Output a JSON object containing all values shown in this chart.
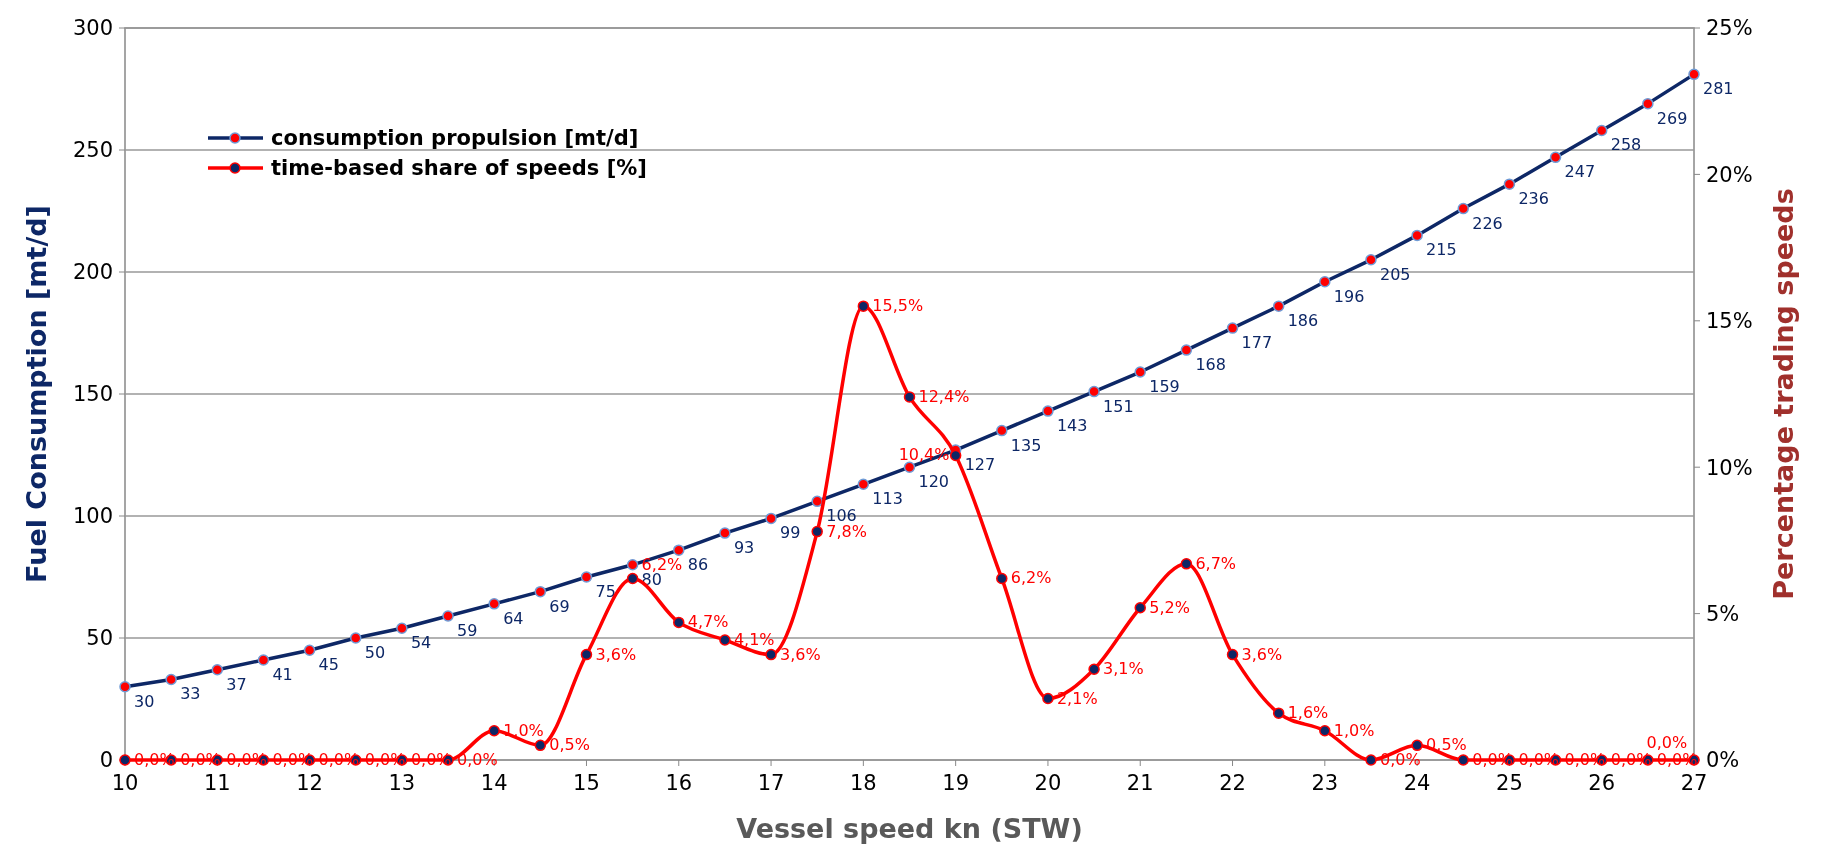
{
  "chart_data": {
    "type": "line",
    "xlabel": "Vessel speed kn (STW)",
    "ylabel": "Fuel Consumption [mt/d]",
    "y2label": "Percentage  trading speeds",
    "x": [
      10,
      10.5,
      11,
      11.5,
      12,
      12.5,
      13,
      13.5,
      14,
      14.5,
      15,
      15.5,
      16,
      16.5,
      17,
      17.5,
      18,
      18.5,
      19,
      19.5,
      20,
      20.5,
      21,
      21.5,
      22,
      22.5,
      23,
      23.5,
      24,
      24.5,
      25,
      25.5,
      26,
      26.5,
      27
    ],
    "series": [
      {
        "name": "consumption propulsion [mt/d]",
        "color": "#0d2766",
        "values": [
          30,
          33,
          37,
          41,
          45,
          50,
          54,
          59,
          64,
          69,
          75,
          80,
          86,
          93,
          99,
          106,
          113,
          120,
          127,
          135,
          143,
          151,
          159,
          168,
          177,
          186,
          196,
          205,
          215,
          226,
          236,
          247,
          258,
          269,
          281
        ],
        "value_labels": [
          "30",
          "33",
          "37",
          "41",
          "45",
          "50",
          "54",
          "59",
          "64",
          "69",
          "75",
          "80",
          "86",
          "93",
          "99",
          "106",
          "113",
          "120",
          "127",
          "135",
          "143",
          "151",
          "159",
          "168",
          "177",
          "186",
          "196",
          "205",
          "215",
          "226",
          "236",
          "247",
          "258",
          "269",
          "281"
        ]
      },
      {
        "name": "time-based share of speeds [%]",
        "color": "#ff0000",
        "axis": "y2",
        "values": [
          0,
          0,
          0,
          0,
          0,
          0,
          0,
          0,
          1.0,
          0.5,
          3.6,
          6.2,
          4.7,
          4.1,
          3.6,
          7.8,
          15.5,
          12.4,
          10.4,
          6.2,
          2.1,
          3.1,
          5.2,
          6.7,
          3.6,
          1.6,
          1.0,
          0,
          0.5,
          0,
          0,
          0,
          0,
          0,
          0
        ],
        "value_labels": [
          "0,0%",
          "0,0%",
          "0,0%",
          "0,0%",
          "0,0%",
          "0,0%",
          "0,0%",
          "0,0%",
          "1,0%",
          "0,5%",
          "3,6%",
          "6,2%",
          "4,7%",
          "4,1%",
          "3,6%",
          "7,8%",
          "15,5%",
          "12,4%",
          "10,4%",
          "6,2%",
          "2,1%",
          "3,1%",
          "5,2%",
          "6,7%",
          "3,6%",
          "1,6%",
          "1,0%",
          "0,0%",
          "0,5%",
          "0,0%",
          "0,0%",
          "0,0%",
          "0,0%",
          "0,0%",
          "0,0%"
        ]
      }
    ],
    "xlim": [
      10,
      27
    ],
    "xticks": [
      10,
      11,
      12,
      13,
      14,
      15,
      16,
      17,
      18,
      19,
      20,
      21,
      22,
      23,
      24,
      25,
      26,
      27
    ],
    "ylim": [
      0,
      300
    ],
    "yticks": [
      0,
      50,
      100,
      150,
      200,
      250,
      300
    ],
    "y2lim": [
      0,
      25
    ],
    "y2ticks": [
      {
        "value": 0,
        "label": "0%"
      },
      {
        "value": 5,
        "label": "5%"
      },
      {
        "value": 10,
        "label": "10%"
      },
      {
        "value": 15,
        "label": "15%"
      },
      {
        "value": 20,
        "label": "20%"
      },
      {
        "value": 25,
        "label": "25%"
      }
    ],
    "grid": "y",
    "legend": "top left",
    "marker": "circle",
    "line_style": "solid"
  }
}
